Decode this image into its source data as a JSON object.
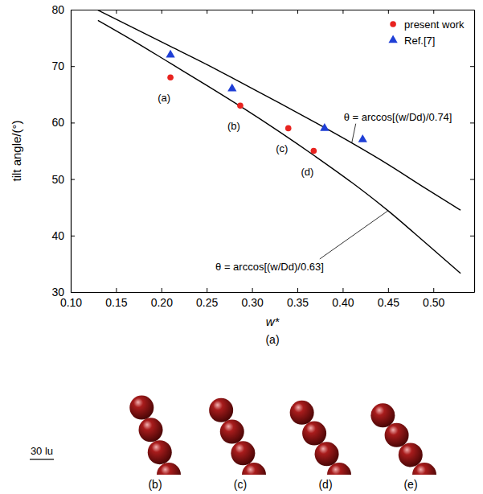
{
  "chart_data": {
    "type": "scatter",
    "xlabel": "w*",
    "ylabel": "tilt angle/(°)",
    "caption": "(a)",
    "xlim": [
      0.1,
      0.545
    ],
    "ylim": [
      30,
      80
    ],
    "xticks": [
      {
        "value": 0.1,
        "label": "0.10"
      },
      {
        "value": 0.15,
        "label": "0.15"
      },
      {
        "value": 0.2,
        "label": "0.20"
      },
      {
        "value": 0.25,
        "label": "0.25"
      },
      {
        "value": 0.3,
        "label": "0.30"
      },
      {
        "value": 0.35,
        "label": "0.35"
      },
      {
        "value": 0.4,
        "label": "0.40"
      },
      {
        "value": 0.45,
        "label": "0.45"
      },
      {
        "value": 0.5,
        "label": "0.50"
      }
    ],
    "yticks": [
      30,
      40,
      50,
      60,
      70,
      80
    ],
    "legend": "top-right",
    "series": [
      {
        "name": "present work",
        "type": "scatter",
        "color": "#e8231f",
        "marker": "circle",
        "x": [
          0.21,
          0.287,
          0.34,
          0.368
        ],
        "values": [
          68,
          63,
          59,
          55
        ],
        "labels": [
          "(a)",
          "(b)",
          "(c)",
          "(d)"
        ]
      },
      {
        "name": "Ref.[7]",
        "type": "scatter",
        "color": "#1f3fd6",
        "marker": "triangle",
        "x": [
          0.21,
          0.278,
          0.38,
          0.422
        ],
        "values": [
          72,
          66,
          59,
          57
        ]
      },
      {
        "name": "θ = arccos[(w/Dd)/0.74]",
        "type": "line",
        "color": "#000000",
        "line_style": "solid",
        "x": [
          0.13,
          0.17,
          0.21,
          0.25,
          0.29,
          0.33,
          0.37,
          0.41,
          0.45,
          0.49,
          0.53
        ],
        "values": [
          79.9,
          76.7,
          73.5,
          70.3,
          66.9,
          63.5,
          60.0,
          56.4,
          52.6,
          48.5,
          44.5
        ]
      },
      {
        "name": "θ = arccos[(w/Dd)/0.63]",
        "type": "line",
        "color": "#000000",
        "line_style": "solid",
        "x": [
          0.13,
          0.17,
          0.21,
          0.25,
          0.29,
          0.33,
          0.37,
          0.41,
          0.45,
          0.49,
          0.53
        ],
        "values": [
          78.1,
          74.4,
          70.5,
          66.6,
          62.6,
          58.4,
          54.0,
          49.4,
          44.4,
          38.9,
          33.3
        ]
      }
    ]
  },
  "figure": {
    "panels": [
      "(b)",
      "(c)",
      "(d)",
      "(e)"
    ],
    "scale_bar": "30 lu"
  }
}
